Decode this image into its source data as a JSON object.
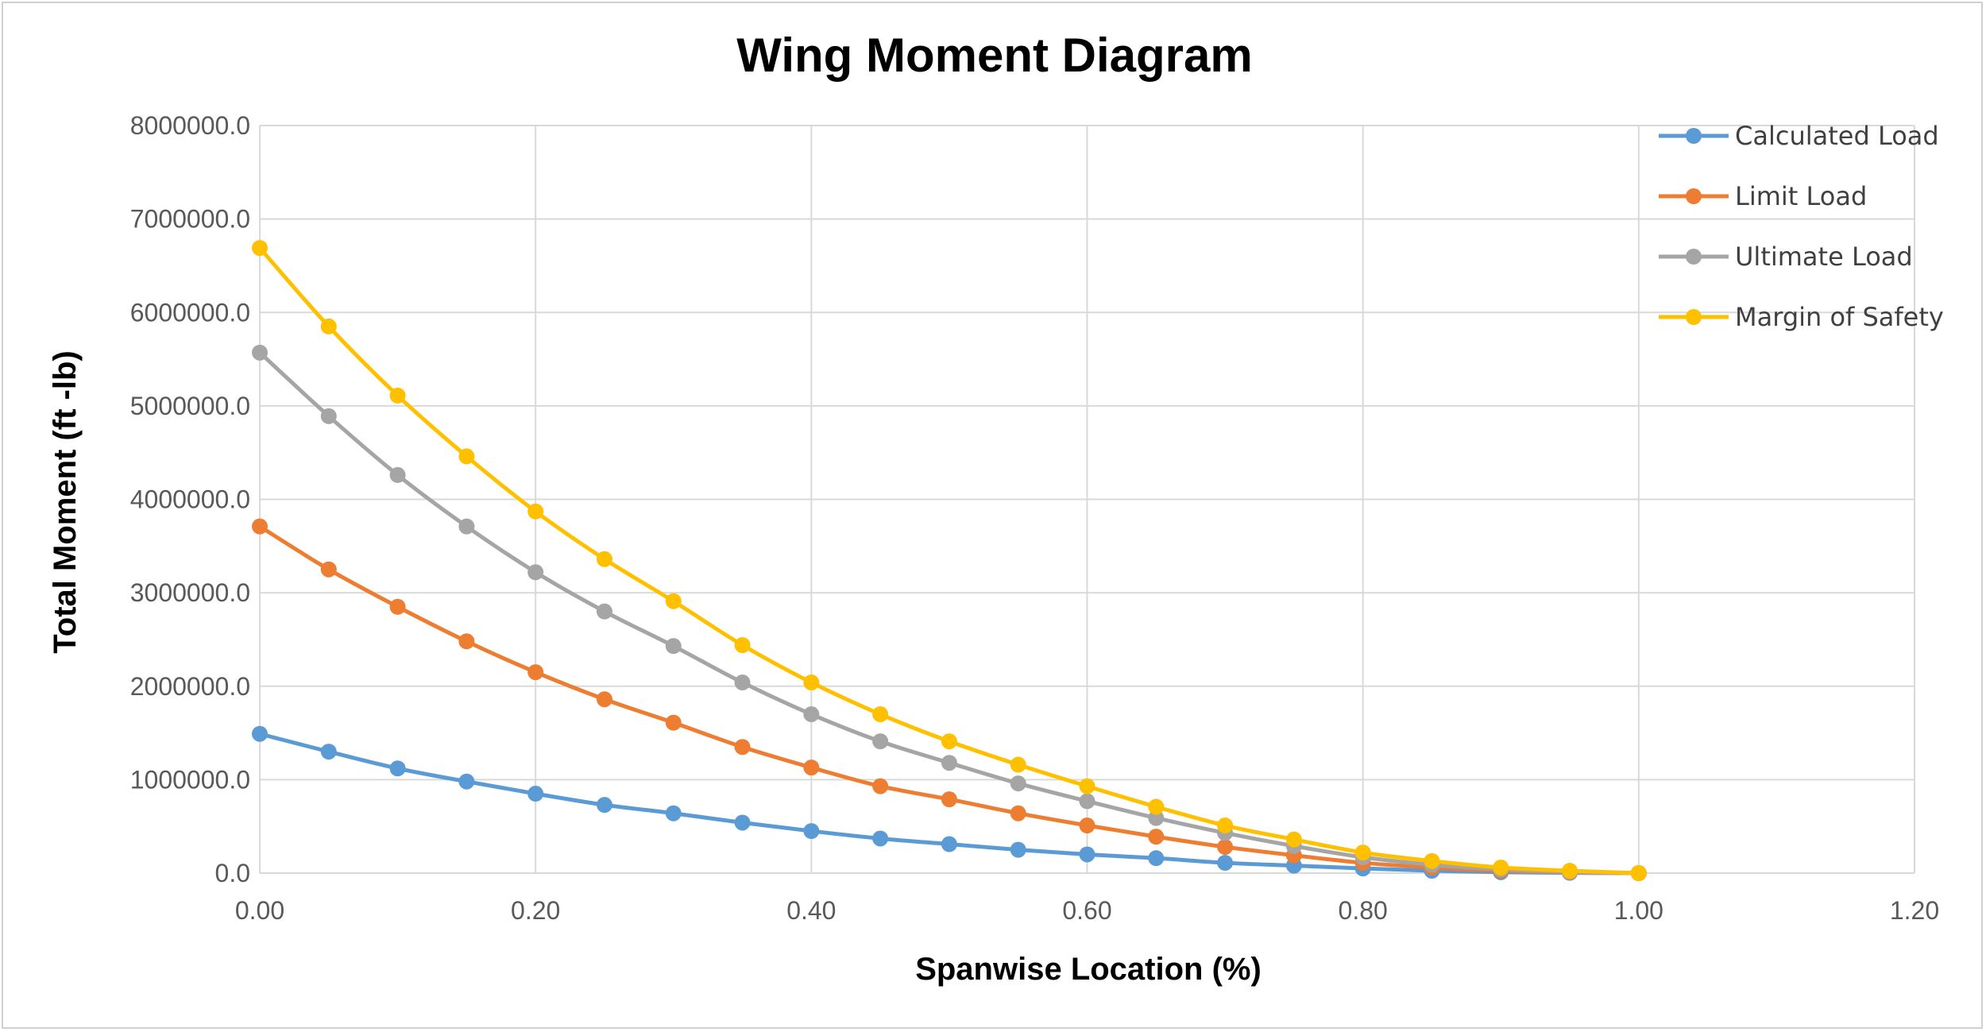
{
  "chart_data": {
    "type": "line",
    "title": "Wing Moment Diagram",
    "xlabel": "Spanwise Location (%)",
    "ylabel": "Total Moment (ft -lb)",
    "xlim": [
      0,
      1.2
    ],
    "ylim": [
      0,
      8000000
    ],
    "x_ticks": [
      "0.00",
      "0.20",
      "0.40",
      "0.60",
      "0.80",
      "1.00",
      "1.20"
    ],
    "y_ticks": [
      "0.0",
      "1000000.0",
      "2000000.0",
      "3000000.0",
      "4000000.0",
      "5000000.0",
      "6000000.0",
      "7000000.0",
      "8000000.0"
    ],
    "grid": "on",
    "legend_position": "top-right",
    "series": [
      {
        "name": "Calculated Load",
        "color": "#5B9BD5",
        "x": [
          0,
          0.05,
          0.1,
          0.15,
          0.2,
          0.25,
          0.3,
          0.35,
          0.4,
          0.45,
          0.5,
          0.55,
          0.6,
          0.65,
          0.7,
          0.75,
          0.8,
          0.85,
          0.9,
          0.95,
          1.0
        ],
        "values": [
          1490000,
          1300000,
          1120000,
          980000,
          850000,
          730000,
          640000,
          540000,
          450000,
          370000,
          310000,
          250000,
          200000,
          160000,
          110000,
          80000,
          50000,
          25000,
          10000,
          3000,
          0
        ]
      },
      {
        "name": "Limit Load",
        "color": "#ED7D31",
        "x": [
          0,
          0.05,
          0.1,
          0.15,
          0.2,
          0.25,
          0.3,
          0.35,
          0.4,
          0.45,
          0.5,
          0.55,
          0.6,
          0.65,
          0.7,
          0.75,
          0.8,
          0.85,
          0.9,
          0.95,
          1.0
        ],
        "values": [
          3710000,
          3250000,
          2850000,
          2480000,
          2150000,
          1860000,
          1610000,
          1350000,
          1130000,
          930000,
          790000,
          640000,
          510000,
          390000,
          280000,
          190000,
          110000,
          60000,
          25000,
          8000,
          0
        ]
      },
      {
        "name": "Ultimate Load",
        "color": "#A5A5A5",
        "x": [
          0,
          0.05,
          0.1,
          0.15,
          0.2,
          0.25,
          0.3,
          0.35,
          0.4,
          0.45,
          0.5,
          0.55,
          0.6,
          0.65,
          0.7,
          0.75,
          0.8,
          0.85,
          0.9,
          0.95,
          1.0
        ],
        "values": [
          5570000,
          4890000,
          4260000,
          3710000,
          3220000,
          2800000,
          2430000,
          2040000,
          1700000,
          1410000,
          1180000,
          960000,
          770000,
          590000,
          430000,
          290000,
          170000,
          90000,
          40000,
          12000,
          0
        ]
      },
      {
        "name": "Margin of Safety",
        "color": "#FFC000",
        "x": [
          0,
          0.05,
          0.1,
          0.15,
          0.2,
          0.25,
          0.3,
          0.35,
          0.4,
          0.45,
          0.5,
          0.55,
          0.6,
          0.65,
          0.7,
          0.75,
          0.8,
          0.85,
          0.9,
          0.95,
          1.0
        ],
        "values": [
          6690000,
          5850000,
          5110000,
          4460000,
          3870000,
          3360000,
          2910000,
          2440000,
          2040000,
          1700000,
          1410000,
          1160000,
          930000,
          710000,
          510000,
          360000,
          220000,
          130000,
          60000,
          25000,
          0
        ]
      }
    ]
  }
}
